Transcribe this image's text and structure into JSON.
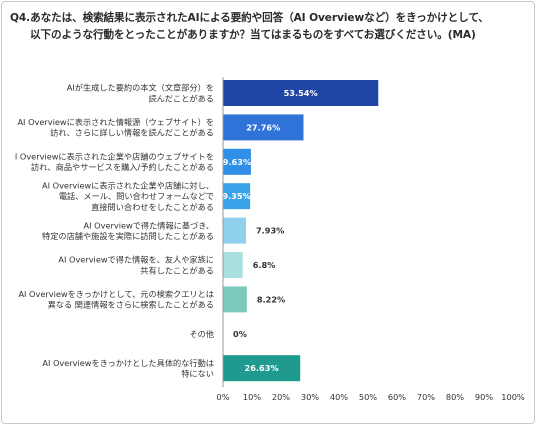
{
  "title": {
    "line1": "Q4.あなたは、検索結果に表示されたAIによる要約や回答（AI Overviewなど）をきっかけとして、",
    "line2": "以下のような行動をとったことがありますか？当てはまるものをすべてお選びください。(MA)"
  },
  "chart_data": {
    "type": "bar",
    "orientation": "horizontal",
    "categories": [
      [
        "AIが生成した要約の本文（文章部分）を",
        "読んだことがある"
      ],
      [
        "AI Overviewに表示された情報源（ウェブサイト）を",
        "訪れ、さらに詳しい情報を読んだことがある"
      ],
      [
        "I Overviewに表示された企業や店舗のウェブサイトを",
        "訪れ、商品やサービスを購入/予約したことがある"
      ],
      [
        "AI Overviewに表示された企業や店舗に対し、",
        "電話、メール、問い合わせフォームなどで",
        "直接問い合わせをしたことがある"
      ],
      [
        "AI Overviewで得た情報に基づき、",
        "特定の店舗や施設を実際に訪問したことがある"
      ],
      [
        "AI Overviewで得た情報を、友人や家族に",
        "共有したことがある"
      ],
      [
        "AI Overviewをきっかけとして、元の検索クエリとは",
        "異なる 関連情報をさらに検索したことがある"
      ],
      [
        "その他"
      ],
      [
        "AI Overviewをきっかけとした具体的な行動は",
        "特にない"
      ]
    ],
    "values": [
      53.54,
      27.76,
      9.63,
      9.35,
      7.93,
      6.8,
      8.22,
      0,
      26.63
    ],
    "value_labels": [
      "53.54%",
      "27.76%",
      "9.63%",
      "9.35%",
      "7.93%",
      "6.8%",
      "8.22%",
      "0%",
      "26.63%"
    ],
    "bar_colors": [
      "#1f45a6",
      "#2f73d8",
      "#2f8fe6",
      "#3aa2e8",
      "#8fd0ec",
      "#a7e0dc",
      "#7bcbbd",
      "#a4ddd6",
      "#1f9a8e"
    ],
    "label_inside": [
      true,
      true,
      true,
      true,
      false,
      false,
      false,
      false,
      true
    ],
    "xlim": [
      0,
      100
    ],
    "xticks": [
      "0%",
      "10%",
      "20%",
      "30%",
      "40%",
      "50%",
      "60%",
      "70%",
      "80%",
      "90%",
      "100%"
    ],
    "grid": false
  }
}
